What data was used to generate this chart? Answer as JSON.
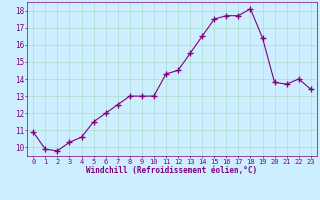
{
  "x": [
    0,
    1,
    2,
    3,
    4,
    5,
    6,
    7,
    8,
    9,
    10,
    11,
    12,
    13,
    14,
    15,
    16,
    17,
    18,
    19,
    20,
    21,
    22,
    23
  ],
  "y": [
    10.9,
    9.9,
    9.8,
    10.3,
    10.6,
    11.5,
    12.0,
    12.5,
    13.0,
    13.0,
    13.0,
    14.3,
    14.5,
    15.5,
    16.5,
    17.5,
    17.7,
    17.7,
    18.1,
    16.4,
    13.8,
    13.7,
    14.0,
    13.4
  ],
  "line_color": "#800080",
  "marker": "+",
  "marker_size": 4,
  "bg_color": "#cceeff",
  "grid_color": "#aaddcc",
  "xlabel": "Windchill (Refroidissement éolien,°C)",
  "xlabel_color": "#800080",
  "tick_color": "#800080",
  "ylim": [
    9.5,
    18.5
  ],
  "xlim": [
    -0.5,
    23.5
  ],
  "yticks": [
    10,
    11,
    12,
    13,
    14,
    15,
    16,
    17,
    18
  ],
  "xticks": [
    0,
    1,
    2,
    3,
    4,
    5,
    6,
    7,
    8,
    9,
    10,
    11,
    12,
    13,
    14,
    15,
    16,
    17,
    18,
    19,
    20,
    21,
    22,
    23
  ]
}
